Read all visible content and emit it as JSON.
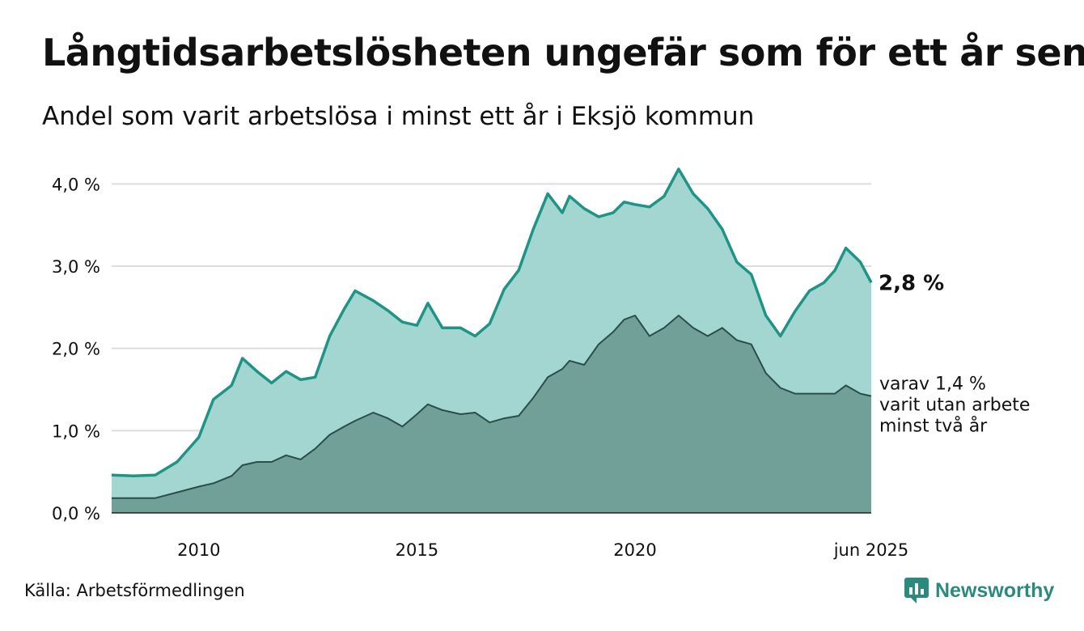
{
  "header": {
    "title": "Långtidsarbetslösheten ungefär som för ett år sen",
    "subtitle": "Andel som varit arbetslösa i minst ett år i Eksjö kommun"
  },
  "footer": {
    "source": "Källa: Arbetsförmedlingen",
    "brand": "Newsworthy"
  },
  "colors": {
    "main_line": "#1e9486",
    "main_fill": "#a3d6d0",
    "sub_line": "#2a4e48",
    "sub_fill": "#70a098",
    "grid": "#dddddd",
    "brand": "#2b8a7d"
  },
  "chart_data": {
    "type": "area",
    "xlabel": "",
    "ylabel": "",
    "x_range": [
      "2008-01",
      "2025-06"
    ],
    "ylim": [
      0,
      4.2
    ],
    "grid": true,
    "y_ticks": [
      {
        "value": 0,
        "label": "0,0 %"
      },
      {
        "value": 1,
        "label": "1,0 %"
      },
      {
        "value": 2,
        "label": "2,0 %"
      },
      {
        "value": 3,
        "label": "3,0 %"
      },
      {
        "value": 4,
        "label": "4,0 %"
      }
    ],
    "x_ticks": [
      {
        "value": "2010-01",
        "label": "2010"
      },
      {
        "value": "2015-01",
        "label": "2015"
      },
      {
        "value": "2020-01",
        "label": "2020"
      },
      {
        "value": "2025-06",
        "label": "jun 2025"
      }
    ],
    "series": [
      {
        "unit": "%",
        "end_label": "2,8 %",
        "points": [
          [
            "2008-01",
            0.46
          ],
          [
            "2008-07",
            0.45
          ],
          [
            "2009-01",
            0.46
          ],
          [
            "2009-07",
            0.62
          ],
          [
            "2010-01",
            0.92
          ],
          [
            "2010-05",
            1.38
          ],
          [
            "2010-10",
            1.55
          ],
          [
            "2011-01",
            1.88
          ],
          [
            "2011-05",
            1.72
          ],
          [
            "2011-09",
            1.58
          ],
          [
            "2012-01",
            1.72
          ],
          [
            "2012-05",
            1.62
          ],
          [
            "2012-09",
            1.65
          ],
          [
            "2013-01",
            2.15
          ],
          [
            "2013-05",
            2.48
          ],
          [
            "2013-08",
            2.7
          ],
          [
            "2014-01",
            2.58
          ],
          [
            "2014-05",
            2.46
          ],
          [
            "2014-09",
            2.32
          ],
          [
            "2015-01",
            2.28
          ],
          [
            "2015-04",
            2.55
          ],
          [
            "2015-08",
            2.25
          ],
          [
            "2016-01",
            2.25
          ],
          [
            "2016-05",
            2.15
          ],
          [
            "2016-09",
            2.3
          ],
          [
            "2017-01",
            2.72
          ],
          [
            "2017-05",
            2.95
          ],
          [
            "2017-09",
            3.45
          ],
          [
            "2018-01",
            3.88
          ],
          [
            "2018-05",
            3.65
          ],
          [
            "2018-07",
            3.85
          ],
          [
            "2018-11",
            3.7
          ],
          [
            "2019-03",
            3.6
          ],
          [
            "2019-07",
            3.65
          ],
          [
            "2019-10",
            3.78
          ],
          [
            "2020-01",
            3.75
          ],
          [
            "2020-05",
            3.72
          ],
          [
            "2020-09",
            3.85
          ],
          [
            "2021-01",
            4.18
          ],
          [
            "2021-05",
            3.88
          ],
          [
            "2021-09",
            3.7
          ],
          [
            "2022-01",
            3.45
          ],
          [
            "2022-05",
            3.05
          ],
          [
            "2022-09",
            2.9
          ],
          [
            "2023-01",
            2.4
          ],
          [
            "2023-05",
            2.15
          ],
          [
            "2023-09",
            2.45
          ],
          [
            "2024-01",
            2.7
          ],
          [
            "2024-05",
            2.8
          ],
          [
            "2024-08",
            2.95
          ],
          [
            "2024-11",
            3.22
          ],
          [
            "2025-03",
            3.05
          ],
          [
            "2025-06",
            2.8
          ]
        ]
      },
      {
        "unit": "%",
        "end_label": "varav 1,4 % varit utan arbete minst två år",
        "points": [
          [
            "2008-01",
            0.18
          ],
          [
            "2008-07",
            0.18
          ],
          [
            "2009-01",
            0.18
          ],
          [
            "2009-07",
            0.25
          ],
          [
            "2010-01",
            0.32
          ],
          [
            "2010-05",
            0.36
          ],
          [
            "2010-10",
            0.45
          ],
          [
            "2011-01",
            0.58
          ],
          [
            "2011-05",
            0.62
          ],
          [
            "2011-09",
            0.62
          ],
          [
            "2012-01",
            0.7
          ],
          [
            "2012-05",
            0.65
          ],
          [
            "2012-09",
            0.78
          ],
          [
            "2013-01",
            0.95
          ],
          [
            "2013-05",
            1.05
          ],
          [
            "2013-08",
            1.12
          ],
          [
            "2014-01",
            1.22
          ],
          [
            "2014-05",
            1.15
          ],
          [
            "2014-09",
            1.05
          ],
          [
            "2015-01",
            1.2
          ],
          [
            "2015-04",
            1.32
          ],
          [
            "2015-08",
            1.25
          ],
          [
            "2016-01",
            1.2
          ],
          [
            "2016-05",
            1.22
          ],
          [
            "2016-09",
            1.1
          ],
          [
            "2017-01",
            1.15
          ],
          [
            "2017-05",
            1.18
          ],
          [
            "2017-09",
            1.4
          ],
          [
            "2018-01",
            1.65
          ],
          [
            "2018-05",
            1.75
          ],
          [
            "2018-07",
            1.85
          ],
          [
            "2018-11",
            1.8
          ],
          [
            "2019-03",
            2.05
          ],
          [
            "2019-07",
            2.2
          ],
          [
            "2019-10",
            2.35
          ],
          [
            "2020-01",
            2.4
          ],
          [
            "2020-05",
            2.15
          ],
          [
            "2020-09",
            2.25
          ],
          [
            "2021-01",
            2.4
          ],
          [
            "2021-05",
            2.25
          ],
          [
            "2021-09",
            2.15
          ],
          [
            "2022-01",
            2.25
          ],
          [
            "2022-05",
            2.1
          ],
          [
            "2022-09",
            2.05
          ],
          [
            "2023-01",
            1.7
          ],
          [
            "2023-05",
            1.52
          ],
          [
            "2023-09",
            1.45
          ],
          [
            "2024-01",
            1.45
          ],
          [
            "2024-05",
            1.45
          ],
          [
            "2024-08",
            1.45
          ],
          [
            "2024-11",
            1.55
          ],
          [
            "2025-03",
            1.45
          ],
          [
            "2025-06",
            1.42
          ]
        ]
      }
    ]
  }
}
